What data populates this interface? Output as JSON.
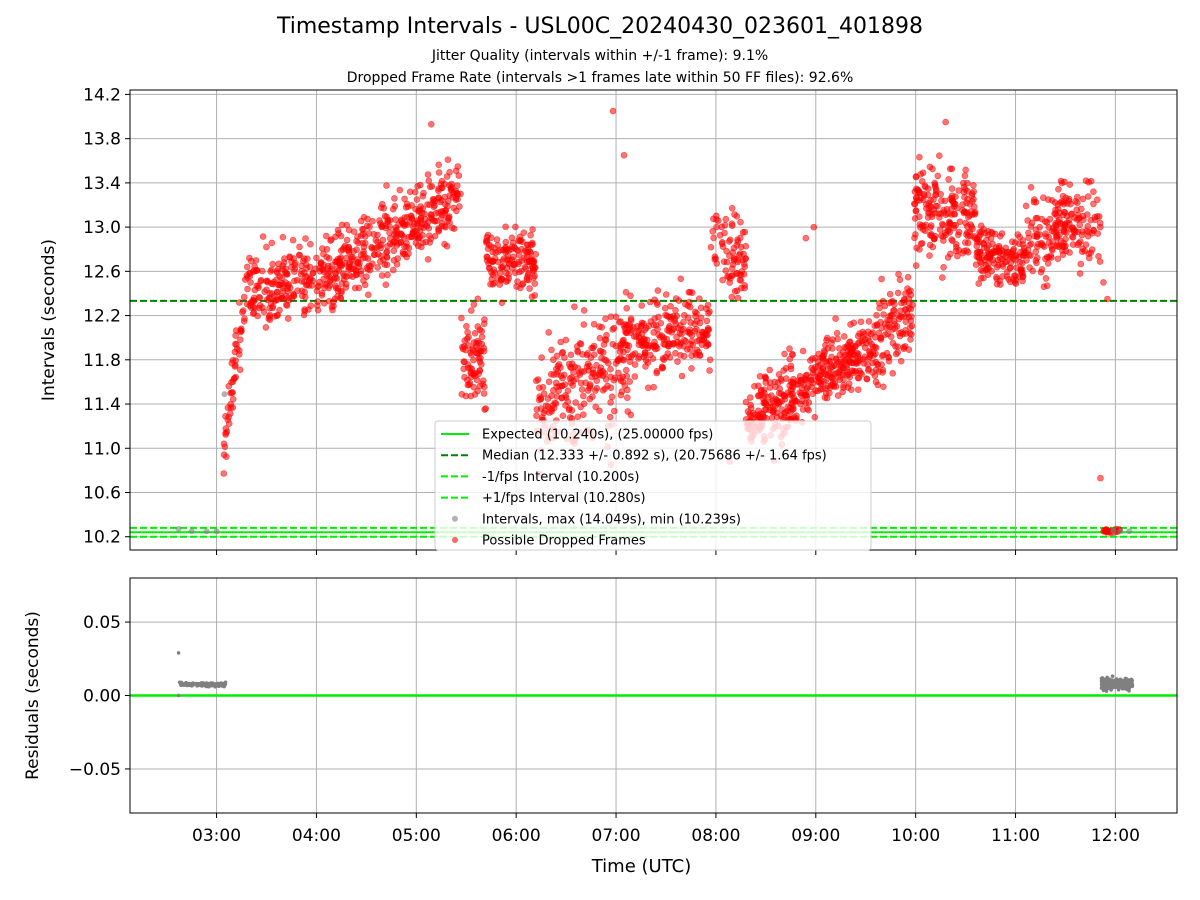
{
  "chart": {
    "title": "Timestamp Intervals - USL00C_20240430_023601_401898",
    "subtitle_1": "Jitter Quality (intervals within +/-1 frame): 9.1%",
    "subtitle_2": "Dropped Frame Rate (intervals >1 frames late within 50 FF files): 92.6%"
  },
  "chart_data": [
    {
      "type": "scatter",
      "panel": "intervals",
      "ylabel": "Intervals (seconds)",
      "xlabel": "",
      "x_unit": "hours UTC",
      "xlim": [
        "02:08",
        "12:37"
      ],
      "ylim": [
        10.08,
        14.24
      ],
      "yticks": [
        10.2,
        10.6,
        11.0,
        11.4,
        11.8,
        12.2,
        12.6,
        13.0,
        13.4,
        13.8,
        14.2
      ],
      "ytick_labels": [
        "10.2",
        "10.6",
        "11.0",
        "11.4",
        "11.8",
        "12.2",
        "12.6",
        "13.0",
        "13.4",
        "13.8",
        "14.2"
      ],
      "grid": true,
      "legend_placement": "lower-center",
      "reference_lines": [
        {
          "name": "Expected (10.240s), (25.00000 fps)",
          "y": 10.24,
          "color": "#00ee00",
          "style": "solid"
        },
        {
          "name": "Median (12.333 +/- 0.892 s), (20.75686 +/- 1.64 fps)",
          "y": 12.333,
          "color": "#008000",
          "style": "dashed"
        },
        {
          "name": "-1/fps Interval (10.200s)",
          "y": 10.2,
          "color": "#00ee00",
          "style": "dashed"
        },
        {
          "name": "+1/fps Interval (10.280s)",
          "y": 10.28,
          "color": "#00ee00",
          "style": "dashed"
        }
      ],
      "series": [
        {
          "name": "Intervals, max (14.049s), min (10.239s)",
          "color": "#808080",
          "points": [
            [
              2.62,
              10.27
            ],
            [
              2.75,
              10.25
            ],
            [
              2.9,
              10.25
            ],
            [
              3.0,
              10.25
            ],
            [
              3.08,
              11.49
            ],
            [
              11.98,
              10.25
            ],
            [
              12.05,
              10.25
            ],
            [
              12.14,
              10.25
            ]
          ]
        },
        {
          "name": "Possible Dropped Frames",
          "color": "#ff0000",
          "segments": [
            {
              "x": [
                3.07,
                3.33
              ],
              "y": [
                11.0,
                12.7
              ],
              "spread": 0.3,
              "n": 60
            },
            {
              "x": [
                3.33,
                4.2
              ],
              "y": [
                12.4,
                12.6
              ],
              "spread": 0.3,
              "n": 230
            },
            {
              "x": [
                4.2,
                5.0
              ],
              "y": [
                12.6,
                13.05
              ],
              "spread": 0.3,
              "n": 230
            },
            {
              "x": [
                5.0,
                5.45
              ],
              "y": [
                13.05,
                13.3
              ],
              "spread": 0.3,
              "n": 130
            },
            {
              "x": [
                5.45,
                5.7
              ],
              "y": [
                11.7,
                11.9
              ],
              "spread": 0.4,
              "n": 80
            },
            {
              "x": [
                5.7,
                6.2
              ],
              "y": [
                12.7,
                12.7
              ],
              "spread": 0.25,
              "n": 150
            },
            {
              "x": [
                6.2,
                6.55
              ],
              "y": [
                11.3,
                11.6
              ],
              "spread": 0.4,
              "n": 90
            },
            {
              "x": [
                6.55,
                7.15
              ],
              "y": [
                11.55,
                11.9
              ],
              "spread": 0.5,
              "n": 170
            },
            {
              "x": [
                7.15,
                7.95
              ],
              "y": [
                11.95,
                12.1
              ],
              "spread": 0.3,
              "n": 210
            },
            {
              "x": [
                7.95,
                8.3
              ],
              "y": [
                12.9,
                12.7
              ],
              "spread": 0.35,
              "n": 80
            },
            {
              "x": [
                8.3,
                9.0
              ],
              "y": [
                11.25,
                11.6
              ],
              "spread": 0.28,
              "n": 230
            },
            {
              "x": [
                9.0,
                9.6
              ],
              "y": [
                11.65,
                11.9
              ],
              "spread": 0.25,
              "n": 200
            },
            {
              "x": [
                9.6,
                9.98
              ],
              "y": [
                11.95,
                12.3
              ],
              "spread": 0.35,
              "n": 110
            },
            {
              "x": [
                9.98,
                10.6
              ],
              "y": [
                13.15,
                13.1
              ],
              "spread": 0.35,
              "n": 200
            },
            {
              "x": [
                10.6,
                11.1
              ],
              "y": [
                12.8,
                12.7
              ],
              "spread": 0.25,
              "n": 150
            },
            {
              "x": [
                11.1,
                11.85
              ],
              "y": [
                12.9,
                13.1
              ],
              "spread": 0.35,
              "n": 200
            },
            {
              "x": [
                11.88,
                12.05
              ],
              "y": [
                10.25,
                10.25
              ],
              "spread": 0.02,
              "n": 20
            }
          ],
          "outliers": [
            [
              6.97,
              14.05
            ],
            [
              10.3,
              13.95
            ],
            [
              5.15,
              13.93
            ],
            [
              7.08,
              13.65
            ],
            [
              11.85,
              10.73
            ],
            [
              11.88,
              12.5
            ],
            [
              11.92,
              12.35
            ],
            [
              8.9,
              12.9
            ],
            [
              8.98,
              13.0
            ],
            [
              6.95,
              10.85
            ],
            [
              8.14,
              10.88
            ]
          ]
        }
      ]
    },
    {
      "type": "scatter",
      "panel": "residuals",
      "xlabel": "Time (UTC)",
      "ylabel": "Residuals (seconds)",
      "xlim": [
        "02:08",
        "12:37"
      ],
      "ylim": [
        -0.08,
        0.08
      ],
      "xticks": [
        3,
        4,
        5,
        6,
        7,
        8,
        9,
        10,
        11,
        12
      ],
      "xtick_labels": [
        "03:00",
        "04:00",
        "05:00",
        "06:00",
        "07:00",
        "08:00",
        "09:00",
        "10:00",
        "11:00",
        "12:00"
      ],
      "yticks": [
        -0.05,
        0.0,
        0.05
      ],
      "ytick_labels": [
        "−0.05",
        "0.00",
        "0.05"
      ],
      "grid": true,
      "zero_line_color": "#00ee00",
      "series": [
        {
          "name": "Residuals",
          "color": "#808080",
          "points": [
            [
              2.62,
              0.029
            ],
            [
              2.62,
              0.0
            ],
            [
              2.63,
              0.009
            ],
            [
              2.65,
              0.008
            ],
            [
              2.7,
              0.008
            ],
            [
              2.75,
              0.008
            ],
            [
              2.8,
              0.008
            ],
            [
              2.85,
              0.008
            ],
            [
              2.9,
              0.008
            ],
            [
              2.95,
              0.008
            ],
            [
              3.0,
              0.008
            ],
            [
              3.05,
              0.008
            ],
            [
              3.09,
              0.009
            ],
            [
              11.87,
              0.012
            ],
            [
              11.9,
              0.004
            ],
            [
              11.92,
              0.01
            ],
            [
              11.95,
              0.006
            ],
            [
              11.98,
              0.009
            ],
            [
              12.0,
              0.008
            ],
            [
              12.03,
              0.005
            ],
            [
              12.05,
              0.011
            ],
            [
              12.08,
              0.007
            ],
            [
              12.1,
              0.009
            ],
            [
              12.12,
              0.006
            ],
            [
              12.15,
              0.008
            ],
            [
              12.17,
              0.007
            ]
          ]
        }
      ]
    }
  ]
}
